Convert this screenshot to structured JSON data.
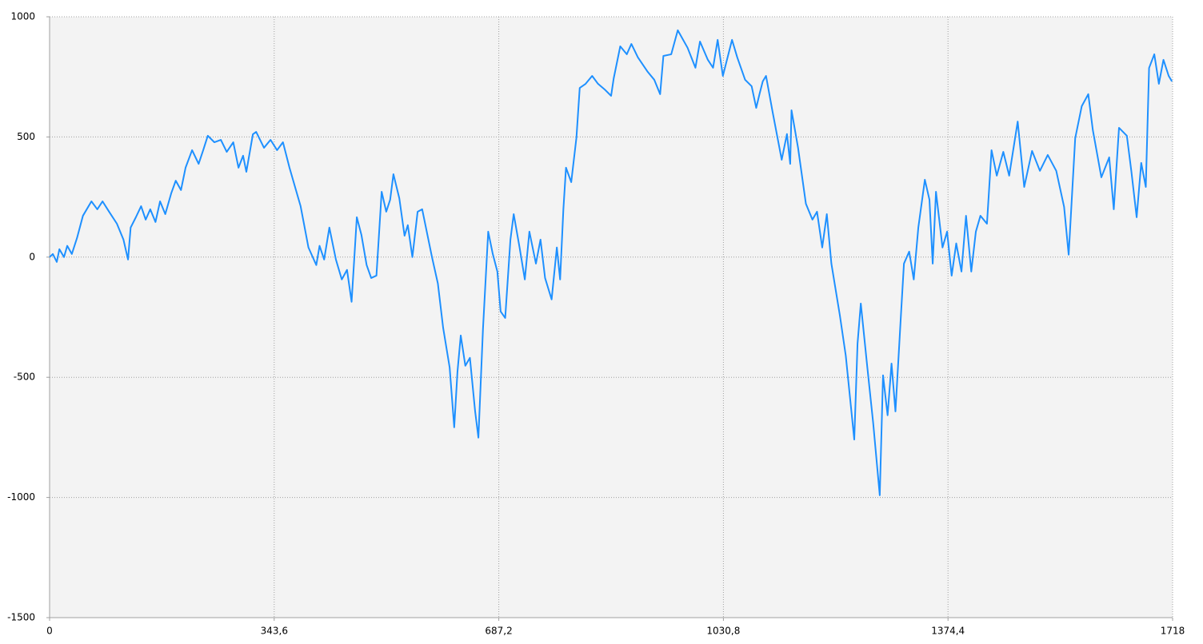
{
  "chart_data": {
    "type": "line",
    "x": [
      0,
      5,
      11,
      15,
      22,
      27,
      34,
      42,
      51,
      64,
      73,
      81,
      91,
      103,
      113,
      120,
      124,
      132,
      140,
      147,
      154,
      162,
      169,
      177,
      186,
      193,
      201,
      208,
      218,
      228,
      235,
      242,
      252,
      262,
      271,
      281,
      289,
      296,
      301,
      311,
      316,
      328,
      338,
      348,
      357,
      367,
      384,
      396,
      408,
      413,
      420,
      428,
      438,
      447,
      455,
      462,
      470,
      477,
      485,
      492,
      500,
      508,
      515,
      521,
      526,
      535,
      543,
      548,
      555,
      563,
      570,
      577,
      585,
      594,
      602,
      612,
      619,
      624,
      629,
      636,
      643,
      651,
      656,
      663,
      671,
      678,
      685,
      690,
      697,
      705,
      710,
      719,
      727,
      734,
      744,
      751,
      758,
      768,
      776,
      781,
      786,
      790,
      798,
      806,
      811,
      820,
      830,
      839,
      849,
      859,
      863,
      873,
      883,
      890,
      900,
      915,
      925,
      934,
      939,
      951,
      961,
      976,
      988,
      995,
      1007,
      1015,
      1022,
      1030,
      1044,
      1052,
      1064,
      1074,
      1081,
      1086,
      1091,
      1096,
      1106,
      1120,
      1128,
      1133,
      1135,
      1145,
      1157,
      1167,
      1174,
      1182,
      1189,
      1196,
      1209,
      1218,
      1231,
      1236,
      1241,
      1251,
      1260,
      1270,
      1275,
      1282,
      1288,
      1294,
      1302,
      1307,
      1315,
      1322,
      1329,
      1339,
      1346,
      1351,
      1356,
      1366,
      1373,
      1380,
      1387,
      1395,
      1402,
      1410,
      1417,
      1424,
      1434,
      1441,
      1449,
      1459,
      1468,
      1481,
      1491,
      1503,
      1515,
      1527,
      1540,
      1552,
      1559,
      1569,
      1579,
      1589,
      1596,
      1609,
      1621,
      1628,
      1636,
      1648,
      1655,
      1663,
      1670,
      1677,
      1682,
      1690,
      1697,
      1704,
      1712,
      1717
    ],
    "series": [
      {
        "color": "#1e90ff",
        "values": [
          0,
          13,
          -20,
          33,
          0,
          47,
          13,
          80,
          172,
          232,
          199,
          232,
          189,
          139,
          73,
          -10,
          123,
          166,
          212,
          156,
          199,
          146,
          232,
          179,
          265,
          318,
          279,
          372,
          445,
          388,
          445,
          505,
          478,
          488,
          438,
          478,
          372,
          422,
          355,
          511,
          521,
          455,
          488,
          445,
          478,
          372,
          212,
          40,
          -33,
          47,
          -10,
          123,
          -10,
          -93,
          -53,
          -186,
          166,
          93,
          -33,
          -87,
          -77,
          272,
          189,
          239,
          345,
          245,
          89,
          133,
          0,
          189,
          199,
          106,
          0,
          -110,
          -293,
          -459,
          -708,
          -476,
          -326,
          -452,
          -419,
          -642,
          -751,
          -299,
          106,
          13,
          -60,
          -226,
          -253,
          73,
          179,
          40,
          -93,
          106,
          -27,
          73,
          -87,
          -176,
          40,
          -93,
          199,
          372,
          312,
          498,
          704,
          721,
          754,
          721,
          698,
          671,
          744,
          877,
          844,
          887,
          831,
          771,
          738,
          678,
          837,
          844,
          944,
          871,
          788,
          897,
          821,
          788,
          904,
          754,
          904,
          831,
          738,
          711,
          621,
          678,
          731,
          754,
          605,
          405,
          512,
          388,
          611,
          455,
          222,
          156,
          189,
          40,
          179,
          -27,
          -243,
          -410,
          -759,
          -360,
          -193,
          -459,
          -692,
          -991,
          -492,
          -658,
          -443,
          -642,
          -260,
          -27,
          23,
          -93,
          123,
          322,
          239,
          -27,
          272,
          40,
          106,
          -77,
          57,
          -60,
          172,
          -60,
          106,
          172,
          139,
          445,
          339,
          438,
          339,
          564,
          292,
          442,
          359,
          425,
          359,
          209,
          10,
          495,
          628,
          678,
          528,
          332,
          415,
          199,
          538,
          505,
          355,
          166,
          392,
          292,
          787,
          844,
          721,
          821,
          754,
          731
        ]
      }
    ],
    "xlim": [
      0,
      1718
    ],
    "xticks": [
      0,
      {
        "value": 343.6,
        "label": "343,6"
      },
      {
        "value": 687.2,
        "label": "687,2"
      },
      {
        "value": 1030.8,
        "label": "1030,8"
      },
      {
        "value": 1374.4,
        "label": "1374,4"
      },
      1718
    ],
    "ylim": [
      -1500,
      1000
    ],
    "yticks": [
      -1500,
      -1000,
      -500,
      0,
      500,
      1000
    ],
    "grid": true
  }
}
